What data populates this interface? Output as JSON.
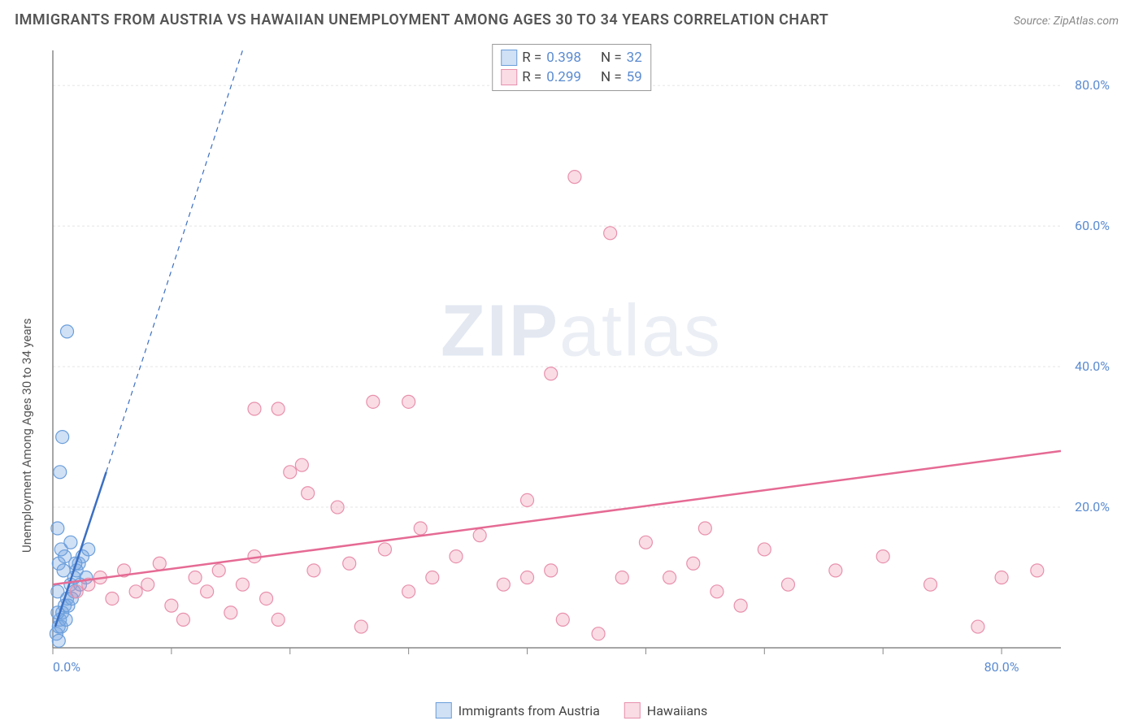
{
  "title": "IMMIGRANTS FROM AUSTRIA VS HAWAIIAN UNEMPLOYMENT AMONG AGES 30 TO 34 YEARS CORRELATION CHART",
  "source": "Source: ZipAtlas.com",
  "y_axis_label": "Unemployment Among Ages 30 to 34 years",
  "watermark": {
    "left": "ZIP",
    "right": "atlas"
  },
  "chart": {
    "type": "scatter",
    "xlim": [
      0,
      85
    ],
    "ylim": [
      0,
      85
    ],
    "x_ticks": [
      0,
      10,
      20,
      30,
      40,
      50,
      60,
      70,
      80
    ],
    "y_ticks": [
      20,
      40,
      60,
      80
    ],
    "x_tick_labels": {
      "0": "0.0%",
      "80": "80.0%"
    },
    "y_tick_labels": {
      "20": "20.0%",
      "40": "40.0%",
      "60": "60.0%",
      "80": "80.0%"
    },
    "grid_color": "#e5e5e5",
    "axis_color": "#888888",
    "tick_label_color": "#5b8bd0",
    "background_color": "#ffffff",
    "marker_radius": 8,
    "marker_stroke_width": 1.2,
    "trend_line_width": 2.5,
    "series": [
      {
        "name": "Immigrants from Austria",
        "fill_color": "rgba(120,165,225,0.35)",
        "stroke_color": "#6a9edb",
        "trend_color": "#3b6fc2",
        "R": "0.398",
        "N": "32",
        "trend_line": {
          "x1": 0.2,
          "y1": 3,
          "x2": 4.5,
          "y2": 25
        },
        "trend_dash": {
          "x1": 4.5,
          "y1": 25,
          "x2": 16,
          "y2": 85
        },
        "points": [
          [
            0.3,
            2
          ],
          [
            0.5,
            3
          ],
          [
            0.6,
            4
          ],
          [
            0.8,
            5
          ],
          [
            1.0,
            6
          ],
          [
            1.2,
            7
          ],
          [
            0.4,
            8
          ],
          [
            1.5,
            9
          ],
          [
            1.8,
            10
          ],
          [
            2.0,
            11
          ],
          [
            0.5,
            12
          ],
          [
            2.2,
            12
          ],
          [
            1.0,
            13
          ],
          [
            2.5,
            13
          ],
          [
            0.7,
            14
          ],
          [
            3.0,
            14
          ],
          [
            1.5,
            15
          ],
          [
            0.4,
            17
          ],
          [
            0.6,
            25
          ],
          [
            0.8,
            30
          ],
          [
            1.2,
            45
          ],
          [
            0.5,
            1
          ],
          [
            1.8,
            8
          ],
          [
            2.8,
            10
          ],
          [
            0.9,
            11
          ],
          [
            1.3,
            6
          ],
          [
            1.6,
            7
          ],
          [
            0.7,
            3
          ],
          [
            1.1,
            4
          ],
          [
            2.3,
            9
          ],
          [
            1.9,
            12
          ],
          [
            0.4,
            5
          ]
        ]
      },
      {
        "name": "Hawaiians",
        "fill_color": "rgba(240,140,170,0.30)",
        "stroke_color": "#e890ac",
        "trend_color": "#e56a94",
        "R": "0.299",
        "N": "59",
        "trend_line": {
          "x1": 0,
          "y1": 9,
          "x2": 85,
          "y2": 28
        },
        "points": [
          [
            2,
            8
          ],
          [
            3,
            9
          ],
          [
            4,
            10
          ],
          [
            5,
            7
          ],
          [
            6,
            11
          ],
          [
            7,
            8
          ],
          [
            8,
            9
          ],
          [
            9,
            12
          ],
          [
            10,
            6
          ],
          [
            11,
            4
          ],
          [
            12,
            10
          ],
          [
            13,
            8
          ],
          [
            14,
            11
          ],
          [
            15,
            5
          ],
          [
            16,
            9
          ],
          [
            17,
            13
          ],
          [
            18,
            7
          ],
          [
            19,
            4
          ],
          [
            20,
            25
          ],
          [
            21,
            26
          ],
          [
            21.5,
            22
          ],
          [
            17,
            34
          ],
          [
            19,
            34
          ],
          [
            22,
            11
          ],
          [
            24,
            20
          ],
          [
            25,
            12
          ],
          [
            26,
            3
          ],
          [
            27,
            35
          ],
          [
            30,
            35
          ],
          [
            28,
            14
          ],
          [
            30,
            8
          ],
          [
            31,
            17
          ],
          [
            32,
            10
          ],
          [
            34,
            13
          ],
          [
            36,
            16
          ],
          [
            38,
            9
          ],
          [
            40,
            21
          ],
          [
            40,
            10
          ],
          [
            42,
            11
          ],
          [
            42,
            39
          ],
          [
            43,
            4
          ],
          [
            44,
            67
          ],
          [
            46,
            2
          ],
          [
            48,
            10
          ],
          [
            47,
            59
          ],
          [
            50,
            15
          ],
          [
            52,
            10
          ],
          [
            54,
            12
          ],
          [
            55,
            17
          ],
          [
            56,
            8
          ],
          [
            58,
            6
          ],
          [
            60,
            14
          ],
          [
            62,
            9
          ],
          [
            66,
            11
          ],
          [
            70,
            13
          ],
          [
            74,
            9
          ],
          [
            78,
            3
          ],
          [
            80,
            10
          ],
          [
            83,
            11
          ]
        ]
      }
    ]
  },
  "legend_top_labels": {
    "R": "R =",
    "N": "N ="
  },
  "legend_bottom": [
    {
      "label": "Immigrants from Austria",
      "fill": "rgba(120,165,225,0.35)",
      "stroke": "#6a9edb"
    },
    {
      "label": "Hawaiians",
      "fill": "rgba(240,140,170,0.30)",
      "stroke": "#e890ac"
    }
  ]
}
